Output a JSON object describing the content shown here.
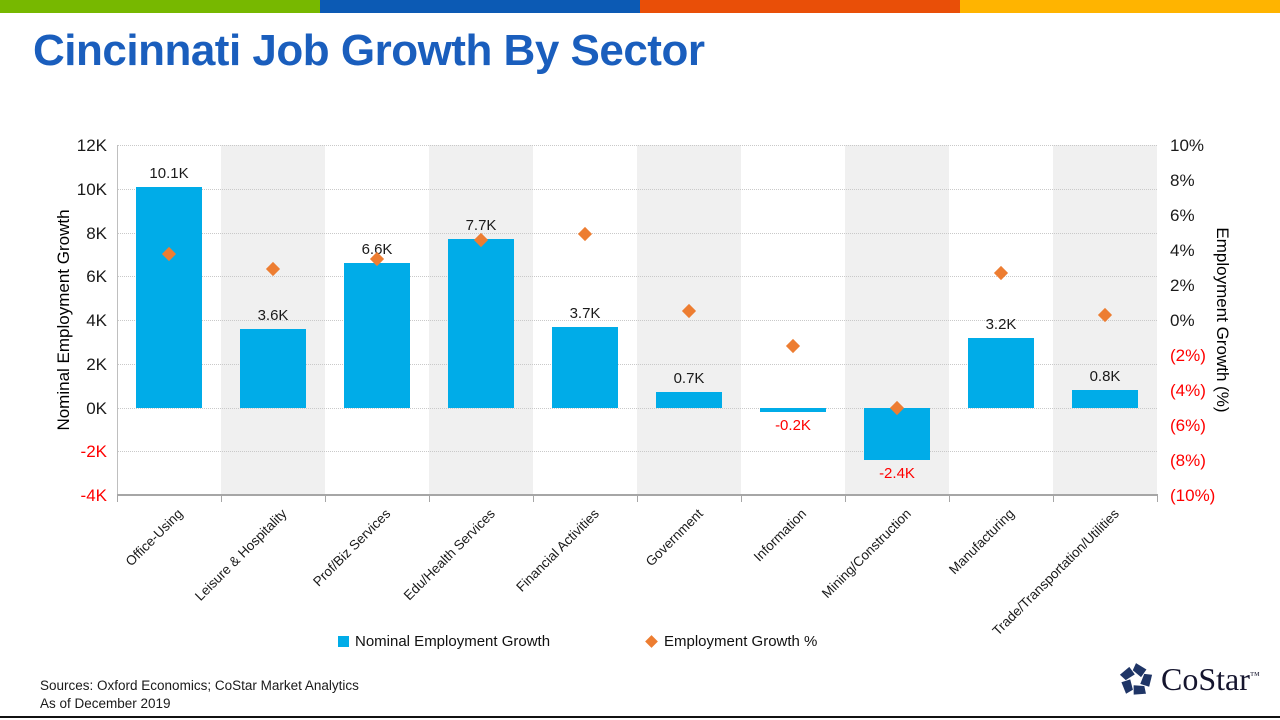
{
  "accent_bar": {
    "segments": [
      {
        "name": "green",
        "color": "#77B800"
      },
      {
        "name": "blue",
        "color": "#0C5AB4"
      },
      {
        "name": "orange",
        "color": "#E94F08"
      },
      {
        "name": "yellow",
        "color": "#FFB400"
      }
    ]
  },
  "title": "Cincinnati Job Growth By Sector",
  "title_color": "#1A5EBD",
  "chart_data": {
    "type": "bar",
    "subtype": "combo-bar-with-scatter-diamonds",
    "categories": [
      "Office-Using",
      "Leisure & Hospitality",
      "Prof/Biz Services",
      "Edu/Health Services",
      "Financial Activities",
      "Government",
      "Information",
      "Mining/Construction",
      "Manufacturing",
      "Trade/Transportation/Utilities"
    ],
    "series": [
      {
        "name": "Nominal Employment Growth",
        "type": "bar",
        "color": "#00ACE8",
        "values": [
          10100,
          3600,
          6600,
          7700,
          3700,
          700,
          -200,
          -2400,
          3200,
          800
        ],
        "data_labels": [
          "10.1K",
          "3.6K",
          "6.6K",
          "7.7K",
          "3.7K",
          "0.7K",
          "-0.2K",
          "-2.4K",
          "3.2K",
          "0.8K"
        ]
      },
      {
        "name": "Employment Growth %",
        "type": "scatter",
        "marker": "diamond",
        "color": "#ED7D31",
        "values_pct": [
          3.8,
          2.9,
          3.5,
          4.6,
          4.9,
          0.5,
          -1.5,
          -5.0,
          2.7,
          0.3
        ]
      }
    ],
    "left_axis": {
      "title": "Nominal Employment Growth",
      "min": -4000,
      "max": 12000,
      "step": 2000,
      "tick_labels": [
        "12K",
        "10K",
        "8K",
        "6K",
        "4K",
        "2K",
        "0K",
        "-2K",
        "-4K"
      ],
      "negative_color": "#FF0000"
    },
    "right_axis": {
      "title": "Employment Growth (%)",
      "min": -10,
      "max": 10,
      "step": 2,
      "tick_labels": [
        "10%",
        "8%",
        "6%",
        "4%",
        "2%",
        "0%",
        "(2%)",
        "(4%)",
        "(6%)",
        "(8%)",
        "(10%)"
      ],
      "negative_color": "#FF0000"
    },
    "grid": "horizontal-dotted",
    "plot_band_colors": [
      "#FFFFFF",
      "#F0F0F0"
    ],
    "legend_position": "bottom"
  },
  "legend": [
    {
      "label": "Nominal Employment Growth",
      "marker": "square",
      "color": "#00ACE8"
    },
    {
      "label": "Employment Growth %",
      "marker": "diamond",
      "color": "#ED7D31"
    }
  ],
  "footer": {
    "sources": "Sources: Oxford Economics; CoStar Market Analytics",
    "as_of": "As of December 2019"
  },
  "logo": {
    "text": "CoStar",
    "tm": "™",
    "text_color": "#15152E",
    "icon_color": "#1F3566"
  }
}
